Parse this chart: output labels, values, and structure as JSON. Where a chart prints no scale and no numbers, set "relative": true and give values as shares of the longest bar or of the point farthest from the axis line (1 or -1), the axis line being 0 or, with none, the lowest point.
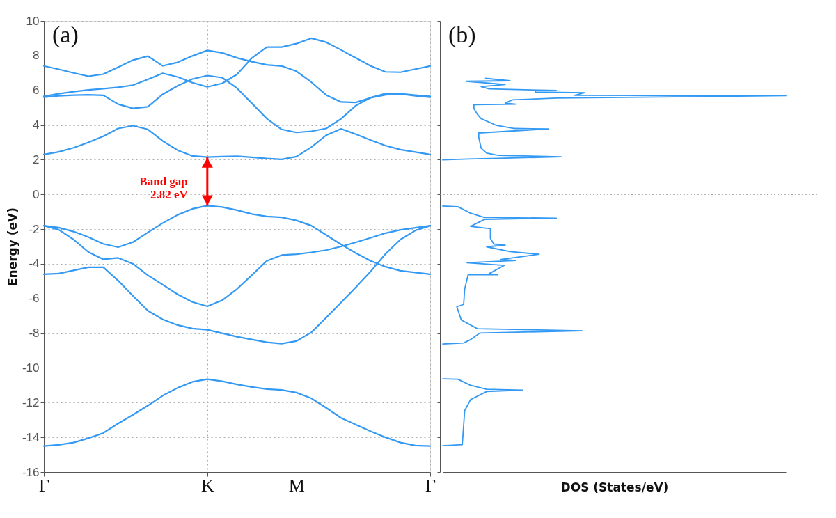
{
  "chart_data": [
    {
      "type": "line",
      "ylabel": "Energy (eV)",
      "ylim": [
        -16,
        10
      ],
      "yticks": [
        -16,
        -14,
        -12,
        -10,
        -8,
        -6,
        -4,
        -2,
        0,
        2,
        4,
        6,
        8,
        10
      ],
      "categories": [
        "Γ",
        null,
        null,
        null,
        null,
        null,
        null,
        null,
        null,
        null,
        null,
        "K",
        null,
        null,
        null,
        null,
        null,
        "M",
        null,
        null,
        null,
        null,
        null,
        null,
        null,
        null,
        "Γ"
      ],
      "grid": true,
      "legend": false,
      "marker": "none",
      "line_style": "solid",
      "annotations": [
        "(a)",
        "Band gap\n2.82 eV"
      ],
      "series": [
        {
          "color": "#3399f3",
          "values": [
            -14.5,
            -14.43,
            -14.3,
            -14.05,
            -13.75,
            -13.2,
            -12.7,
            -12.17,
            -11.6,
            -11.15,
            -10.8,
            -10.65,
            -10.77,
            -10.95,
            -11.1,
            -11.22,
            -11.27,
            -11.42,
            -11.75,
            -12.3,
            -12.88,
            -13.27,
            -13.65,
            -14.0,
            -14.3,
            -14.47,
            -14.5
          ]
        },
        {
          "color": "#3399f3",
          "values": [
            -4.6,
            -4.56,
            -4.38,
            -4.2,
            -4.2,
            -4.97,
            -5.85,
            -6.7,
            -7.2,
            -7.53,
            -7.73,
            -7.8,
            -8.0,
            -8.2,
            -8.36,
            -8.52,
            -8.6,
            -8.45,
            -7.95,
            -7.1,
            -6.23,
            -5.35,
            -4.43,
            -3.42,
            -2.6,
            -2.08,
            -1.8
          ]
        },
        {
          "color": "#3399f3",
          "values": [
            -1.8,
            -2.03,
            -2.6,
            -3.32,
            -3.74,
            -3.66,
            -4.0,
            -4.66,
            -5.2,
            -5.76,
            -6.2,
            -6.45,
            -6.1,
            -5.45,
            -4.65,
            -3.83,
            -3.5,
            -3.45,
            -3.34,
            -3.21,
            -3.0,
            -2.76,
            -2.5,
            -2.23,
            -2.04,
            -1.92,
            -1.8
          ]
        },
        {
          "color": "#3399f3",
          "values": [
            -1.8,
            -1.91,
            -2.14,
            -2.46,
            -2.85,
            -3.04,
            -2.75,
            -2.19,
            -1.65,
            -1.18,
            -0.83,
            -0.65,
            -0.73,
            -0.91,
            -1.13,
            -1.27,
            -1.32,
            -1.5,
            -1.8,
            -2.34,
            -2.88,
            -3.38,
            -3.83,
            -4.17,
            -4.4,
            -4.5,
            -4.6
          ]
        },
        {
          "color": "#3399f3",
          "values": [
            2.3,
            2.45,
            2.69,
            3.0,
            3.35,
            3.8,
            3.96,
            3.75,
            3.08,
            2.55,
            2.22,
            2.15,
            2.18,
            2.2,
            2.14,
            2.07,
            2.02,
            2.18,
            2.72,
            3.41,
            3.78,
            3.47,
            3.13,
            2.81,
            2.58,
            2.44,
            2.3
          ]
        },
        {
          "color": "#3399f3",
          "values": [
            5.6,
            5.68,
            5.72,
            5.74,
            5.71,
            5.2,
            4.96,
            5.05,
            5.77,
            6.26,
            6.65,
            6.85,
            6.73,
            6.12,
            5.25,
            4.37,
            3.75,
            3.57,
            3.64,
            3.8,
            4.36,
            5.12,
            5.58,
            5.81,
            5.79,
            5.68,
            5.6
          ]
        },
        {
          "color": "#3399f3",
          "values": [
            5.65,
            5.8,
            5.92,
            6.02,
            6.09,
            6.17,
            6.3,
            6.63,
            6.98,
            6.77,
            6.44,
            6.2,
            6.4,
            6.92,
            7.86,
            8.49,
            8.49,
            8.69,
            9.0,
            8.77,
            8.33,
            7.86,
            7.4,
            7.06,
            7.04,
            7.22,
            7.4
          ]
        },
        {
          "color": "#3399f3",
          "values": [
            7.4,
            7.21,
            7.0,
            6.81,
            6.93,
            7.33,
            7.74,
            7.97,
            7.41,
            7.61,
            7.98,
            8.3,
            8.16,
            7.87,
            7.65,
            7.47,
            7.4,
            7.1,
            6.47,
            5.73,
            5.33,
            5.3,
            5.57,
            5.74,
            5.8,
            5.72,
            5.65
          ]
        }
      ]
    },
    {
      "type": "line",
      "orientation": "horizontal",
      "relative": true,
      "xlabel": "DOS (States/eV)",
      "ylim": [
        -16,
        10
      ],
      "yticks": [
        -16,
        -14,
        -12,
        -10,
        -8,
        -6,
        -4,
        -2,
        0,
        2,
        4,
        6,
        8,
        10
      ],
      "tick_labels": false,
      "legend": false,
      "marker": "none",
      "line_style": "solid",
      "annotations": [
        "(b)"
      ],
      "ref_lines": [
        {
          "axis": "y",
          "value": 0,
          "color": "#999999",
          "line_style": "dotted"
        }
      ],
      "series": [
        {
          "color": "#3399f3",
          "x": [
            -14.48,
            -14.42,
            -12.46,
            -11.83,
            -11.36,
            -11.28,
            -11.23,
            -11.0,
            -10.65,
            -10.63
          ],
          "values": [
            0,
            0.057,
            0.064,
            0.081,
            0.128,
            0.233,
            0.128,
            0.081,
            0.044,
            0
          ]
        },
        {
          "color": "#3399f3",
          "x": [
            -8.62,
            -8.56,
            -8.37,
            -7.99,
            -7.86,
            -7.74,
            -7.23,
            -6.47,
            -6.34,
            -5.46,
            -4.63,
            -4.63,
            -4.57,
            -4.09,
            -3.94,
            -3.81,
            -3.75,
            -3.45,
            -3.3,
            -3.02,
            -2.92,
            -2.86,
            -2.54,
            -1.97,
            -1.84,
            -1.44,
            -1.37,
            -1.33,
            -1.08,
            -0.71,
            -0.67
          ],
          "values": [
            0,
            0.061,
            0.081,
            0.108,
            0.406,
            0.101,
            0.054,
            0.041,
            0.061,
            0.064,
            0.074,
            0.159,
            0.135,
            0.179,
            0.071,
            0.213,
            0.17,
            0.281,
            0.196,
            0.128,
            0.182,
            0.149,
            0.139,
            0.139,
            0.081,
            0.122,
            0.331,
            0.122,
            0.081,
            0.044,
            0
          ]
        },
        {
          "color": "#3399f3",
          "x": [
            1.99,
            2.04,
            2.08,
            2.17,
            2.25,
            2.38,
            2.66,
            3.29,
            3.54,
            3.67,
            3.77,
            3.8,
            3.99,
            4.37,
            4.62,
            4.94,
            5.17,
            5.2,
            5.26,
            5.45,
            5.55,
            5.69,
            5.71,
            5.86,
            5.9,
            5.98,
            5.99,
            6.08,
            6.21,
            6.33,
            6.52,
            6.55,
            6.69
          ],
          "values": [
            0,
            0.074,
            0.162,
            0.345,
            0.162,
            0.128,
            0.112,
            0.105,
            0.105,
            0.216,
            0.308,
            0.21,
            0.155,
            0.112,
            0.101,
            0.091,
            0.091,
            0.213,
            0.182,
            0.203,
            0.331,
            1.0,
            0.385,
            0.413,
            0.27,
            0.27,
            0.331,
            0.135,
            0.112,
            0.182,
            0.068,
            0.196,
            0.125
          ]
        }
      ]
    }
  ]
}
